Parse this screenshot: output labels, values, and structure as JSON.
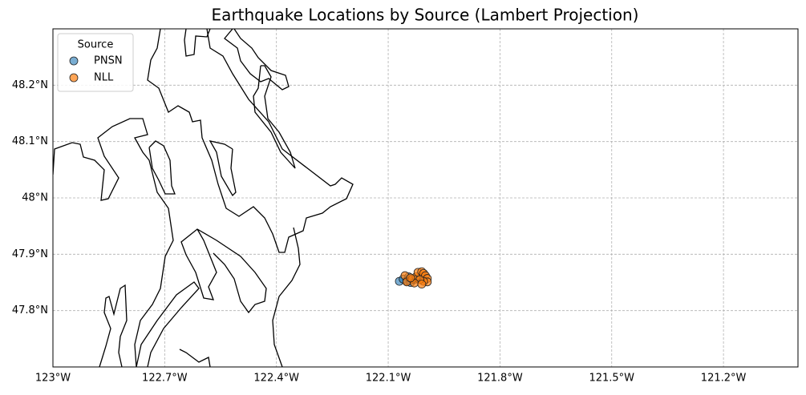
{
  "chart_data": {
    "type": "scatter",
    "title": "Earthquake Locations by Source (Lambert Projection)",
    "legend_title": "Source",
    "legend": "upper left",
    "grid": true,
    "xlim": [
      -123.0,
      -121.0
    ],
    "ylim": [
      47.7,
      48.3
    ],
    "xticks": [
      {
        "value": -123.0,
        "label": "123°W"
      },
      {
        "value": -122.7,
        "label": "122.7°W"
      },
      {
        "value": -122.4,
        "label": "122.4°W"
      },
      {
        "value": -122.1,
        "label": "122.1°W"
      },
      {
        "value": -121.8,
        "label": "121.8°W"
      },
      {
        "value": -121.5,
        "label": "121.5°W"
      },
      {
        "value": -121.2,
        "label": "121.2°W"
      }
    ],
    "yticks": [
      {
        "value": 47.8,
        "label": "47.8°N"
      },
      {
        "value": 47.9,
        "label": "47.9°N"
      },
      {
        "value": 48.0,
        "label": "48°N"
      },
      {
        "value": 48.1,
        "label": "48.1°N"
      },
      {
        "value": 48.2,
        "label": "48.2°N"
      }
    ],
    "series": [
      {
        "name": "PNSN",
        "color": "#1f77b4",
        "x": [
          -122.07,
          -122.06,
          -122.05,
          -122.04,
          -122.03,
          -122.02,
          -122.01,
          -122.045
        ],
        "y": [
          47.852,
          47.856,
          47.853,
          47.85,
          47.855,
          47.857,
          47.858,
          47.86
        ]
      },
      {
        "name": "NLL",
        "color": "#ff7f0e",
        "x": [
          -122.055,
          -122.05,
          -122.035,
          -122.025,
          -122.02,
          -122.01,
          -122.005,
          -122.0,
          -121.995,
          -121.995,
          -122.005,
          -122.015,
          -122.03,
          -122.04,
          -122.01
        ],
        "y": [
          47.862,
          47.851,
          47.856,
          47.86,
          47.868,
          47.869,
          47.866,
          47.862,
          47.857,
          47.851,
          47.852,
          47.855,
          47.849,
          47.858,
          47.847
        ]
      }
    ]
  }
}
